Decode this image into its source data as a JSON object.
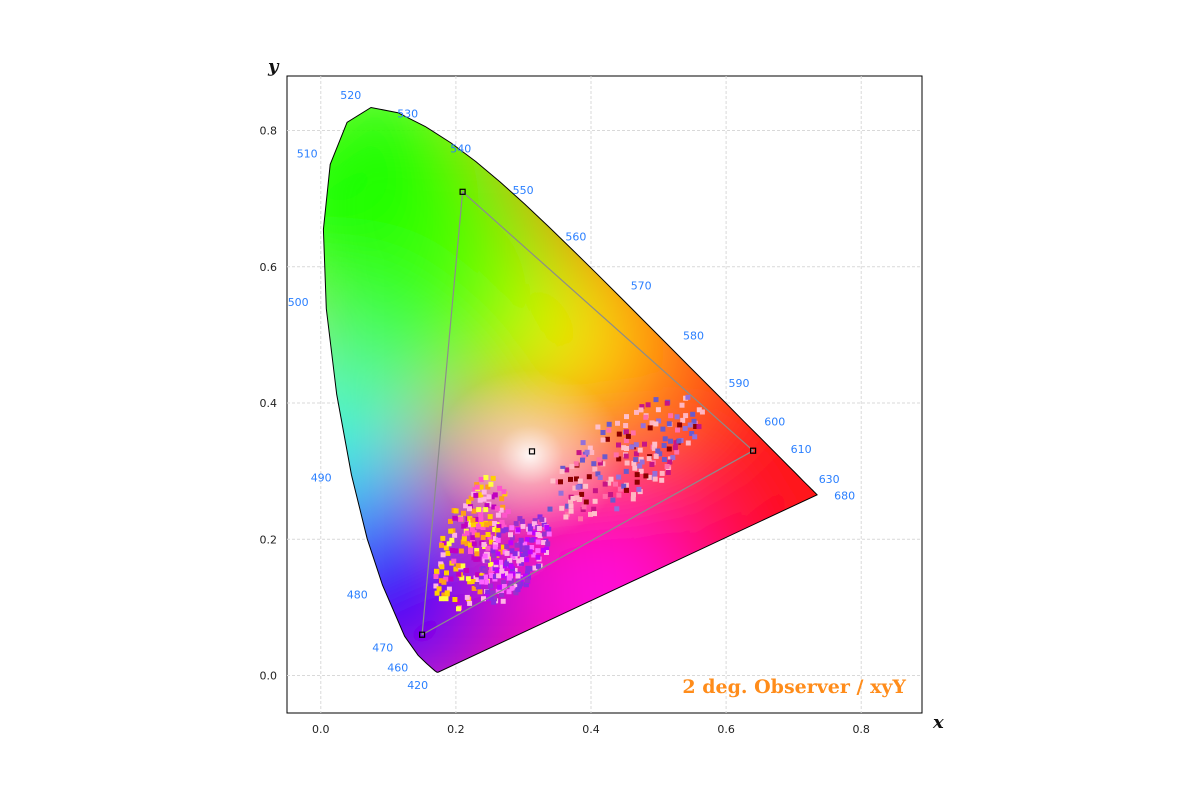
{
  "chart_data": {
    "type": "scatter",
    "title": "",
    "xlabel": "x",
    "ylabel": "y",
    "xlim": [
      -0.05,
      0.89
    ],
    "ylim": [
      -0.055,
      0.88
    ],
    "grid": true,
    "x_ticks": [
      "0.0",
      "0.2",
      "0.4",
      "0.6",
      "0.8"
    ],
    "x_tick_values": [
      0.0,
      0.2,
      0.4,
      0.6,
      0.8
    ],
    "y_ticks": [
      "0.0",
      "0.2",
      "0.4",
      "0.6",
      "0.8"
    ],
    "y_tick_values": [
      0.0,
      0.2,
      0.4,
      0.6,
      0.8
    ],
    "annotation": "2 deg. Observer / xyY",
    "annotation_color": "#ff8c1a",
    "wavelength_labels": [
      {
        "text": "420",
        "x": 0.171,
        "y": 0.005
      },
      {
        "text": "460",
        "x": 0.144,
        "y": 0.03
      },
      {
        "text": "470",
        "x": 0.124,
        "y": 0.058
      },
      {
        "text": "480",
        "x": 0.091,
        "y": 0.133
      },
      {
        "text": "490",
        "x": 0.045,
        "y": 0.295
      },
      {
        "text": "500",
        "x": 0.008,
        "y": 0.538
      },
      {
        "text": "510",
        "x": 0.014,
        "y": 0.75
      },
      {
        "text": "520",
        "x": 0.074,
        "y": 0.834
      },
      {
        "text": "530",
        "x": 0.155,
        "y": 0.806
      },
      {
        "text": "540",
        "x": 0.23,
        "y": 0.754
      },
      {
        "text": "550",
        "x": 0.302,
        "y": 0.692
      },
      {
        "text": "560",
        "x": 0.373,
        "y": 0.624
      },
      {
        "text": "570",
        "x": 0.444,
        "y": 0.555
      },
      {
        "text": "580",
        "x": 0.512,
        "y": 0.487
      },
      {
        "text": "590",
        "x": 0.575,
        "y": 0.424
      },
      {
        "text": "600",
        "x": 0.627,
        "y": 0.372
      },
      {
        "text": "610",
        "x": 0.666,
        "y": 0.334
      },
      {
        "text": "630",
        "x": 0.708,
        "y": 0.292
      },
      {
        "text": "680",
        "x": 0.731,
        "y": 0.269
      }
    ],
    "locus": [
      [
        0.1741,
        0.005
      ],
      [
        0.174,
        0.005
      ],
      [
        0.1733,
        0.0048
      ],
      [
        0.1721,
        0.0048
      ],
      [
        0.1689,
        0.0069
      ],
      [
        0.1644,
        0.0109
      ],
      [
        0.1566,
        0.0177
      ],
      [
        0.144,
        0.0297
      ],
      [
        0.1241,
        0.0578
      ],
      [
        0.0913,
        0.1327
      ],
      [
        0.0687,
        0.2007
      ],
      [
        0.0454,
        0.295
      ],
      [
        0.0235,
        0.4127
      ],
      [
        0.0082,
        0.5384
      ],
      [
        0.0039,
        0.6548
      ],
      [
        0.0139,
        0.7502
      ],
      [
        0.0389,
        0.812
      ],
      [
        0.0743,
        0.8338
      ],
      [
        0.1142,
        0.8262
      ],
      [
        0.1547,
        0.8059
      ],
      [
        0.1929,
        0.7816
      ],
      [
        0.2296,
        0.7543
      ],
      [
        0.2658,
        0.7243
      ],
      [
        0.3016,
        0.6923
      ],
      [
        0.3373,
        0.6589
      ],
      [
        0.3731,
        0.6245
      ],
      [
        0.4087,
        0.5896
      ],
      [
        0.4441,
        0.5547
      ],
      [
        0.4788,
        0.5202
      ],
      [
        0.5125,
        0.4866
      ],
      [
        0.5448,
        0.4544
      ],
      [
        0.5752,
        0.4242
      ],
      [
        0.6029,
        0.3965
      ],
      [
        0.627,
        0.3725
      ],
      [
        0.6482,
        0.3514
      ],
      [
        0.6658,
        0.334
      ],
      [
        0.6801,
        0.3197
      ],
      [
        0.6915,
        0.3083
      ],
      [
        0.7006,
        0.2993
      ],
      [
        0.7079,
        0.292
      ],
      [
        0.714,
        0.2859
      ],
      [
        0.719,
        0.2809
      ],
      [
        0.723,
        0.277
      ],
      [
        0.726,
        0.274
      ],
      [
        0.7283,
        0.2717
      ],
      [
        0.73,
        0.27
      ],
      [
        0.7311,
        0.2689
      ],
      [
        0.732,
        0.268
      ],
      [
        0.7327,
        0.2673
      ],
      [
        0.7334,
        0.2666
      ],
      [
        0.734,
        0.266
      ],
      [
        0.7344,
        0.2656
      ],
      [
        0.7346,
        0.2654
      ],
      [
        0.7347,
        0.2653
      ]
    ],
    "gamut_triangle": [
      [
        0.64,
        0.33
      ],
      [
        0.21,
        0.71
      ],
      [
        0.15,
        0.06
      ]
    ],
    "white_point": [
      0.3127,
      0.329
    ],
    "sample_clusters": [
      {
        "cx": 0.225,
        "cy": 0.195,
        "rx": 0.045,
        "ry": 0.105,
        "angle": -20,
        "colors": [
          "#ffd000",
          "#ff9f1a",
          "#ff55cc",
          "#c000c0",
          "#ffb3e6",
          "#ffff40"
        ]
      },
      {
        "cx": 0.285,
        "cy": 0.17,
        "rx": 0.04,
        "ry": 0.075,
        "angle": -35,
        "colors": [
          "#8a2be2",
          "#c000ff",
          "#ff66ff",
          "#9932cc",
          "#ffb3e6"
        ]
      },
      {
        "cx": 0.45,
        "cy": 0.32,
        "rx": 0.06,
        "ry": 0.135,
        "angle": -55,
        "colors": [
          "#ff6fa8",
          "#8b0000",
          "#ffb6c1",
          "#9370db",
          "#c71585",
          "#ffc0cb",
          "#6a5acd"
        ]
      }
    ]
  }
}
